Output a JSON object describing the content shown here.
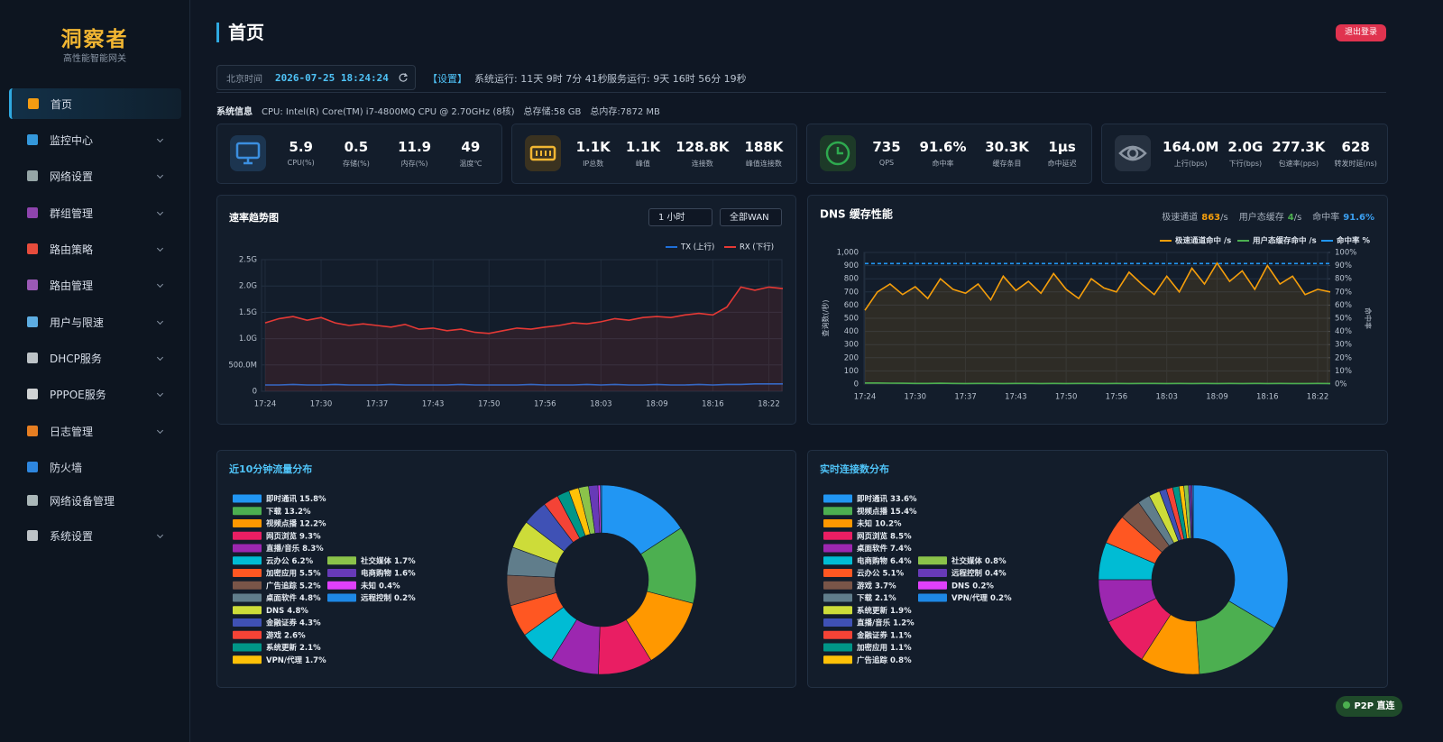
{
  "sidebar": {
    "brand": "洞察者",
    "tagline": "高性能智能网关",
    "menu": [
      {
        "label": "首页",
        "active": true,
        "expandable": false
      },
      {
        "label": "监控中心",
        "expandable": true
      },
      {
        "label": "网络设置",
        "expandable": true
      },
      {
        "label": "群组管理",
        "expandable": true
      },
      {
        "label": "路由策略",
        "expandable": true
      },
      {
        "label": "路由管理",
        "expandable": true
      },
      {
        "label": "用户与限速",
        "expandable": true
      },
      {
        "label": "DHCP服务",
        "expandable": true
      },
      {
        "label": "PPPOE服务",
        "expandable": true
      },
      {
        "label": "日志管理",
        "expandable": true
      },
      {
        "label": "防火墙",
        "expandable": false
      },
      {
        "label": "网络设备管理",
        "expandable": false
      },
      {
        "label": "系统设置",
        "expandable": true
      }
    ]
  },
  "header": {
    "title": "首页",
    "logout": "退出登录"
  },
  "status": {
    "time_label": "北京时间",
    "time": "2026-07-25 18:24:24",
    "settings": "【设置】",
    "system_uptime": "系统运行: 11天 9时 7分 41秒",
    "service_uptime": "服务运行: 9天 16时 56分 19秒"
  },
  "system_info": {
    "label": "系统信息",
    "cpu": "CPU: Intel(R) Core(TM) i7-4800MQ CPU @ 2.70GHz (8核)",
    "storage": "总存储:58 GB",
    "memory": "总内存:7872 MB"
  },
  "stat_cards": [
    {
      "items": [
        {
          "value": "5.9",
          "label": "CPU(%)"
        },
        {
          "value": "0.5",
          "label": "存储(%)"
        },
        {
          "value": "11.9",
          "label": "内存(%)"
        },
        {
          "value": "49",
          "label": "温度℃"
        }
      ]
    },
    {
      "items": [
        {
          "value": "1.1K",
          "label": "IP总数"
        },
        {
          "value": "1.1K",
          "label": "峰值"
        },
        {
          "value": "128.8K",
          "label": "连接数"
        },
        {
          "value": "188K",
          "label": "峰值连接数"
        }
      ]
    },
    {
      "items": [
        {
          "value": "735",
          "label": "QPS"
        },
        {
          "value": "91.6%",
          "label": "命中率"
        },
        {
          "value": "30.3K",
          "label": "缓存条目"
        },
        {
          "value": "1μs",
          "label": "命中延迟"
        }
      ]
    },
    {
      "items": [
        {
          "value": "164.0M",
          "label": "上行(bps)"
        },
        {
          "value": "2.0G",
          "label": "下行(bps)"
        },
        {
          "value": "277.3K",
          "label": "包速率(pps)"
        },
        {
          "value": "628",
          "label": "转发时延(ns)"
        }
      ]
    }
  ],
  "rate_panel": {
    "range": "1 小时",
    "wan": "全部WAN"
  },
  "dns_panel": {
    "stats": [
      {
        "label": "极速通道",
        "value": "863",
        "unit": "/s"
      },
      {
        "label": "用户态缓存",
        "value": "4",
        "unit": "/s"
      },
      {
        "label": "命中率",
        "value": "91.6%"
      }
    ]
  },
  "badge": "P2P 直连",
  "chart_data": [
    {
      "type": "line",
      "title": "速率趋势图",
      "categories": [
        "17:24",
        null,
        null,
        null,
        "17:30",
        null,
        null,
        null,
        "17:37",
        null,
        null,
        null,
        "17:43",
        null,
        null,
        null,
        "17:50",
        null,
        null,
        null,
        "17:56",
        null,
        null,
        null,
        "18:03",
        null,
        null,
        null,
        "18:09",
        null,
        null,
        null,
        "18:16",
        null,
        null,
        null,
        "18:22",
        null
      ],
      "series": [
        {
          "name": "TX (上行)",
          "color": "#1e6fd9",
          "values": [
            0.12,
            0.12,
            0.13,
            0.12,
            0.12,
            0.13,
            0.12,
            0.12,
            0.12,
            0.13,
            0.12,
            0.12,
            0.12,
            0.12,
            0.13,
            0.12,
            0.12,
            0.12,
            0.12,
            0.13,
            0.12,
            0.12,
            0.12,
            0.13,
            0.12,
            0.13,
            0.12,
            0.12,
            0.13,
            0.12,
            0.12,
            0.13,
            0.12,
            0.13,
            0.13,
            0.14,
            0.14,
            0.14
          ]
        },
        {
          "name": "RX (下行)",
          "color": "#e53935",
          "area": true,
          "values": [
            1.3,
            1.38,
            1.42,
            1.35,
            1.4,
            1.3,
            1.25,
            1.28,
            1.25,
            1.22,
            1.27,
            1.18,
            1.2,
            1.15,
            1.18,
            1.12,
            1.1,
            1.15,
            1.2,
            1.18,
            1.22,
            1.25,
            1.3,
            1.28,
            1.32,
            1.38,
            1.35,
            1.4,
            1.42,
            1.4,
            1.45,
            1.48,
            1.45,
            1.6,
            1.98,
            1.92,
            1.98,
            1.95
          ]
        }
      ],
      "ylim": [
        0,
        2.5
      ],
      "yticks": [
        0,
        {
          "value": 0.5,
          "label": "500.0M"
        },
        {
          "value": 1,
          "label": "1.0G"
        },
        {
          "value": 1.5,
          "label": "1.5G"
        },
        {
          "value": 2,
          "label": "2.0G"
        },
        {
          "value": 2.5,
          "label": "2.5G"
        }
      ],
      "grid": true,
      "legend": "top-right"
    },
    {
      "type": "line",
      "title": "DNS 缓存性能",
      "categories": [
        "17:24",
        null,
        null,
        null,
        "17:30",
        null,
        null,
        null,
        "17:37",
        null,
        null,
        null,
        "17:43",
        null,
        null,
        null,
        "17:50",
        null,
        null,
        null,
        "17:56",
        null,
        null,
        null,
        "18:03",
        null,
        null,
        null,
        "18:09",
        null,
        null,
        null,
        "18:16",
        null,
        null,
        null,
        "18:22",
        null
      ],
      "series": [
        {
          "name": "极速通道命中 /s",
          "color": "#f59e0b",
          "area": true,
          "values": [
            560,
            700,
            760,
            680,
            740,
            650,
            800,
            720,
            690,
            760,
            640,
            820,
            710,
            780,
            690,
            840,
            720,
            650,
            800,
            730,
            700,
            850,
            760,
            680,
            820,
            700,
            880,
            760,
            920,
            780,
            860,
            720,
            900,
            760,
            820,
            680,
            720,
            700
          ]
        },
        {
          "name": "用户态缓存命中 /s",
          "color": "#4caf50",
          "values": [
            8,
            8,
            7,
            6,
            5,
            5,
            6,
            5,
            4,
            5,
            5,
            4,
            5,
            5,
            4,
            5,
            4,
            5,
            5,
            4,
            5,
            4,
            5,
            5,
            4,
            5,
            4,
            5,
            4,
            5,
            4,
            5,
            4,
            5,
            4,
            4,
            5,
            4
          ]
        },
        {
          "name": "命中率 %",
          "color": "#2196f3",
          "axis": "y2",
          "line_style": "dashed",
          "values": [
            91.6,
            91.6,
            91.6,
            91.6,
            91.6,
            91.6,
            91.6,
            91.6,
            91.6,
            91.6,
            91.6,
            91.6,
            91.6,
            91.6,
            91.6,
            91.6,
            91.6,
            91.6,
            91.6,
            91.6,
            91.6,
            91.6,
            91.6,
            91.6,
            91.6,
            91.6,
            91.6,
            91.6,
            91.6,
            91.6,
            91.6,
            91.6,
            91.6,
            91.6,
            91.6,
            91.6,
            91.6,
            91.6
          ]
        }
      ],
      "ylim": [
        0,
        1000
      ],
      "yticks": [
        0,
        100,
        200,
        300,
        400,
        500,
        600,
        700,
        800,
        900,
        {
          "value": 1000,
          "label": "1,000"
        }
      ],
      "y2lim": [
        0,
        100
      ],
      "y2ticks": [
        {
          "value": 0,
          "label": "0%"
        },
        {
          "value": 10,
          "label": "10%"
        },
        {
          "value": 20,
          "label": "20%"
        },
        {
          "value": 30,
          "label": "30%"
        },
        {
          "value": 40,
          "label": "40%"
        },
        {
          "value": 50,
          "label": "50%"
        },
        {
          "value": 60,
          "label": "60%"
        },
        {
          "value": 70,
          "label": "70%"
        },
        {
          "value": 80,
          "label": "80%"
        },
        {
          "value": 90,
          "label": "90%"
        },
        {
          "value": 100,
          "label": "100%"
        }
      ],
      "ylabel": "查询数(/秒)",
      "y2label": "命中率",
      "grid": true,
      "legend": "top-right"
    },
    {
      "type": "pie",
      "title": "近10分钟流量分布",
      "donut": true,
      "categories": [
        "即时通讯",
        "下载",
        "视频点播",
        "网页浏览",
        "直播/音乐",
        "云办公",
        "加密应用",
        "广告追踪",
        "桌面软件",
        "DNS",
        "金融证券",
        "游戏",
        "系统更新",
        "VPN/代理",
        "社交媒体",
        "电商购物",
        "未知",
        "远程控制"
      ],
      "values": [
        15.8,
        13.2,
        12.2,
        9.3,
        8.3,
        6.2,
        5.5,
        5.2,
        4.8,
        4.8,
        4.3,
        2.6,
        2.1,
        1.7,
        1.7,
        1.6,
        0.4,
        0.2
      ],
      "value_labels": [
        "15.8%",
        "13.2%",
        "12.2%",
        "9.3%",
        "8.3%",
        "6.2%",
        "5.5%",
        "5.2%",
        "4.8%",
        "4.8%",
        "4.3%",
        "2.6%",
        "2.1%",
        "1.7%",
        "1.7%",
        "1.6%",
        "0.4%",
        "0.2%"
      ],
      "colors": [
        "#2196f3",
        "#4caf50",
        "#ff9800",
        "#e91e63",
        "#9c27b0",
        "#00bcd4",
        "#ff5722",
        "#795548",
        "#607d8b",
        "#cddc39",
        "#3f51b5",
        "#f44336",
        "#009688",
        "#ffc107",
        "#8bc34a",
        "#673ab7",
        "#e040fb",
        "#1e88e5"
      ]
    },
    {
      "type": "pie",
      "title": "实时连接数分布",
      "donut": true,
      "categories": [
        "即时通讯",
        "视频点播",
        "未知",
        "网页浏览",
        "桌面软件",
        "电商购物",
        "云办公",
        "游戏",
        "下载",
        "系统更新",
        "直播/音乐",
        "金融证券",
        "加密应用",
        "广告追踪",
        "社交媒体",
        "远程控制",
        "DNS",
        "VPN/代理"
      ],
      "values": [
        33.6,
        15.4,
        10.2,
        8.5,
        7.4,
        6.4,
        5.1,
        3.7,
        2.1,
        1.9,
        1.2,
        1.1,
        1.1,
        0.8,
        0.8,
        0.4,
        0.2,
        0.2
      ],
      "value_labels": [
        "33.6%",
        "15.4%",
        "10.2%",
        "8.5%",
        "7.4%",
        "6.4%",
        "5.1%",
        "3.7%",
        "2.1%",
        "1.9%",
        "1.2%",
        "1.1%",
        "1.1%",
        "0.8%",
        "0.8%",
        "0.4%",
        "0.2%",
        "0.2%"
      ],
      "colors": [
        "#2196f3",
        "#4caf50",
        "#ff9800",
        "#e91e63",
        "#9c27b0",
        "#00bcd4",
        "#ff5722",
        "#795548",
        "#607d8b",
        "#cddc39",
        "#3f51b5",
        "#f44336",
        "#009688",
        "#ffc107",
        "#8bc34a",
        "#673ab7",
        "#e040fb",
        "#1e88e5"
      ]
    }
  ]
}
